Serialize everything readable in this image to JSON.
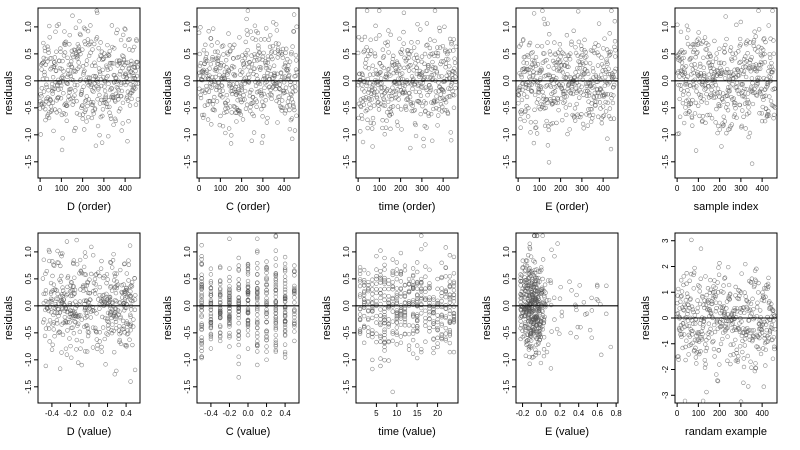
{
  "chart_data": [
    {
      "type": "scatter",
      "xlabel": "D (order)",
      "ylabel": "residuals",
      "xlim": [
        -10,
        470
      ],
      "ylim": [
        -1.8,
        1.35
      ],
      "xticks": [
        0,
        100,
        200,
        300,
        400
      ],
      "xtick_labels": [
        "0",
        "100",
        "200",
        "300",
        "400"
      ],
      "yticks": [
        -1.5,
        -1.0,
        -0.5,
        0.0,
        0.5,
        1.0
      ],
      "ytick_labels": [
        "-1.5",
        "-1.0",
        "-0.5",
        "0.0",
        "0.5",
        "1.0"
      ],
      "reference_y": 0,
      "point_color": "#555555",
      "gen": {
        "mode": "order",
        "seed": 11,
        "n": 460,
        "x0": 0,
        "x1": 460,
        "sd": 0.45
      }
    },
    {
      "type": "scatter",
      "xlabel": "C (order)",
      "ylabel": "residuals",
      "xlim": [
        -10,
        470
      ],
      "ylim": [
        -1.8,
        1.35
      ],
      "xticks": [
        0,
        100,
        200,
        300,
        400
      ],
      "xtick_labels": [
        "0",
        "100",
        "200",
        "300",
        "400"
      ],
      "yticks": [
        -1.5,
        -1.0,
        -0.5,
        0.0,
        0.5,
        1.0
      ],
      "ytick_labels": [
        "-1.5",
        "-1.0",
        "-0.5",
        "0.0",
        "0.5",
        "1.0"
      ],
      "reference_y": 0,
      "point_color": "#555555",
      "gen": {
        "mode": "order",
        "seed": 23,
        "n": 460,
        "x0": 0,
        "x1": 460,
        "sd": 0.45
      }
    },
    {
      "type": "scatter",
      "xlabel": "time (order)",
      "ylabel": "residuals",
      "xlim": [
        -10,
        470
      ],
      "ylim": [
        -1.8,
        1.35
      ],
      "xticks": [
        0,
        100,
        200,
        300,
        400
      ],
      "xtick_labels": [
        "0",
        "100",
        "200",
        "300",
        "400"
      ],
      "yticks": [
        -1.5,
        -1.0,
        -0.5,
        0.0,
        0.5,
        1.0
      ],
      "ytick_labels": [
        "-1.5",
        "-1.0",
        "-0.5",
        "0.0",
        "0.5",
        "1.0"
      ],
      "reference_y": 0,
      "point_color": "#555555",
      "gen": {
        "mode": "order",
        "seed": 37,
        "n": 460,
        "x0": 0,
        "x1": 460,
        "sd": 0.45
      }
    },
    {
      "type": "scatter",
      "xlabel": "E (order)",
      "ylabel": "residuals",
      "xlim": [
        -10,
        470
      ],
      "ylim": [
        -1.8,
        1.35
      ],
      "xticks": [
        0,
        100,
        200,
        300,
        400
      ],
      "xtick_labels": [
        "0",
        "100",
        "200",
        "300",
        "400"
      ],
      "yticks": [
        -1.5,
        -1.0,
        -0.5,
        0.0,
        0.5,
        1.0
      ],
      "ytick_labels": [
        "-1.5",
        "-1.0",
        "-0.5",
        "0.0",
        "0.5",
        "1.0"
      ],
      "reference_y": 0,
      "point_color": "#555555",
      "gen": {
        "mode": "order",
        "seed": 41,
        "n": 460,
        "x0": 0,
        "x1": 460,
        "sd": 0.45
      }
    },
    {
      "type": "scatter",
      "xlabel": "sample index",
      "ylabel": "residuals",
      "xlim": [
        -10,
        470
      ],
      "ylim": [
        -1.8,
        1.35
      ],
      "xticks": [
        0,
        100,
        200,
        300,
        400
      ],
      "xtick_labels": [
        "0",
        "100",
        "200",
        "300",
        "400"
      ],
      "yticks": [
        -1.5,
        -1.0,
        -0.5,
        0.0,
        0.5,
        1.0
      ],
      "ytick_labels": [
        "-1.5",
        "-1.0",
        "-0.5",
        "0.0",
        "0.5",
        "1.0"
      ],
      "reference_y": 0,
      "point_color": "#555555",
      "gen": {
        "mode": "order",
        "seed": 53,
        "n": 460,
        "x0": 0,
        "x1": 460,
        "sd": 0.45
      }
    },
    {
      "type": "scatter",
      "xlabel": "D (value)",
      "ylabel": "residuals",
      "xlim": [
        -0.55,
        0.55
      ],
      "ylim": [
        -1.8,
        1.35
      ],
      "xticks": [
        -0.4,
        -0.2,
        0.0,
        0.2,
        0.4
      ],
      "xtick_labels": [
        "-0.4",
        "-0.2",
        "0.0",
        "0.2",
        "0.4"
      ],
      "yticks": [
        -1.5,
        -1.0,
        -0.5,
        0.0,
        0.5,
        1.0
      ],
      "ytick_labels": [
        "-1.5",
        "-1.0",
        "-0.5",
        "0.0",
        "0.5",
        "1.0"
      ],
      "reference_y": 0,
      "point_color": "#555555",
      "gen": {
        "mode": "uniform",
        "seed": 61,
        "n": 460,
        "x0": -0.5,
        "x1": 0.5,
        "sd": 0.45
      }
    },
    {
      "type": "scatter",
      "xlabel": "C (value)",
      "ylabel": "residuals",
      "xlim": [
        -0.55,
        0.55
      ],
      "ylim": [
        -1.8,
        1.35
      ],
      "xticks": [
        -0.4,
        -0.2,
        0.0,
        0.2,
        0.4
      ],
      "xtick_labels": [
        "-0.4",
        "-0.2",
        "0.0",
        "0.2",
        "0.4"
      ],
      "yticks": [
        -1.5,
        -1.0,
        -0.5,
        0.0,
        0.5,
        1.0
      ],
      "ytick_labels": [
        "-1.5",
        "-1.0",
        "-0.5",
        "0.0",
        "0.5",
        "1.0"
      ],
      "reference_y": 0,
      "point_color": "#555555",
      "gen": {
        "mode": "discrete",
        "seed": 71,
        "n": 460,
        "sd": 0.45,
        "levels": [
          -0.5,
          -0.4,
          -0.3,
          -0.2,
          -0.1,
          0.0,
          0.1,
          0.2,
          0.3,
          0.4,
          0.5
        ]
      }
    },
    {
      "type": "scatter",
      "xlabel": "time (value)",
      "ylabel": "residuals",
      "xlim": [
        0,
        25
      ],
      "ylim": [
        -1.8,
        1.35
      ],
      "xticks": [
        5,
        10,
        15,
        20
      ],
      "xtick_labels": [
        "5",
        "10",
        "15",
        "20"
      ],
      "yticks": [
        -1.5,
        -1.0,
        -0.5,
        0.0,
        0.5,
        1.0
      ],
      "ytick_labels": [
        "-1.5",
        "-1.0",
        "-0.5",
        "0.0",
        "0.5",
        "1.0"
      ],
      "reference_y": 0,
      "point_color": "#555555",
      "gen": {
        "mode": "discrete",
        "seed": 83,
        "n": 460,
        "sd": 0.45,
        "levels": [
          1,
          2,
          3,
          4,
          5,
          6,
          7,
          8,
          9,
          10,
          11,
          12,
          13,
          14,
          15,
          16,
          17,
          18,
          19,
          20,
          21,
          22,
          23,
          24
        ]
      }
    },
    {
      "type": "scatter",
      "xlabel": "E (value)",
      "ylabel": "residuals",
      "xlim": [
        -0.27,
        0.82
      ],
      "ylim": [
        -1.8,
        1.35
      ],
      "xticks": [
        -0.2,
        0.0,
        0.2,
        0.4,
        0.6,
        0.8
      ],
      "xtick_labels": [
        "-0.2",
        "0.0",
        "0.2",
        "0.4",
        "0.6",
        "0.8"
      ],
      "yticks": [
        -1.5,
        -1.0,
        -0.5,
        0.0,
        0.5,
        1.0
      ],
      "ytick_labels": [
        "-1.5",
        "-1.0",
        "-0.5",
        "0.0",
        "0.5",
        "1.0"
      ],
      "reference_y": 0,
      "point_color": "#555555",
      "gen": {
        "mode": "skewed",
        "seed": 97,
        "n": 460,
        "x0": -0.22,
        "x1": 0.78,
        "sd": 0.45
      }
    },
    {
      "type": "scatter",
      "xlabel": "randam example",
      "ylabel": "residuals",
      "xlim": [
        -10,
        470
      ],
      "ylim": [
        -3.3,
        3.3
      ],
      "xticks": [
        0,
        100,
        200,
        300,
        400
      ],
      "xtick_labels": [
        "0",
        "100",
        "200",
        "300",
        "400"
      ],
      "yticks": [
        -3,
        -2,
        -1,
        0,
        1,
        2,
        3
      ],
      "ytick_labels": [
        "-3",
        "-2",
        "-1",
        "0",
        "1",
        "2",
        "3"
      ],
      "reference_y": 0,
      "point_color": "#555555",
      "gen": {
        "mode": "order",
        "seed": 109,
        "n": 460,
        "x0": 0,
        "x1": 460,
        "sd": 1.0
      }
    }
  ]
}
